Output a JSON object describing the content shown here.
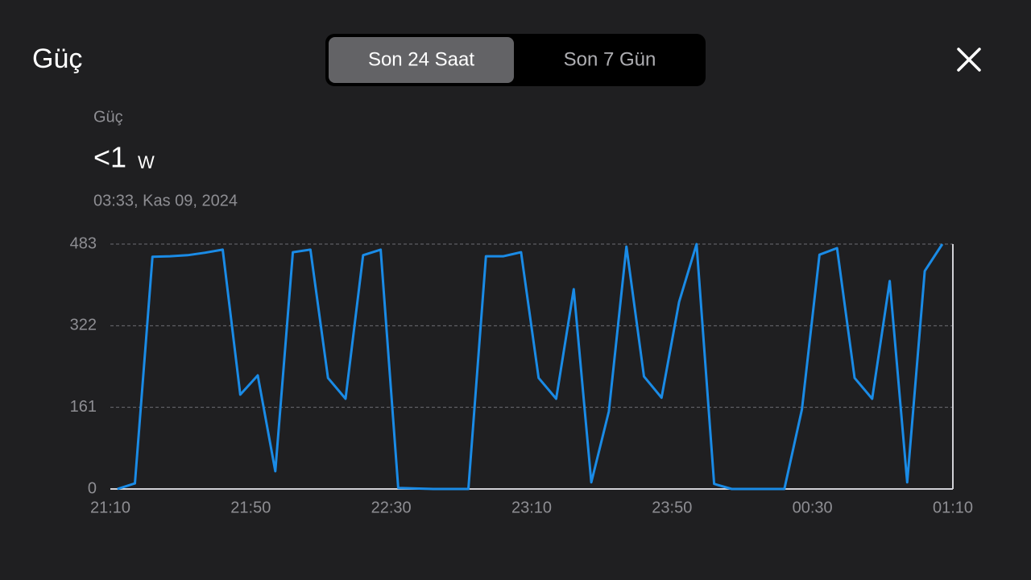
{
  "header": {
    "title": "Güç",
    "tabs": [
      "Son 24 Saat",
      "Son 7 Gün"
    ],
    "active_tab": 0
  },
  "summary": {
    "label": "Güç",
    "value": "<1",
    "unit": "W",
    "timestamp": "03:33, Kas 09, 2024"
  },
  "chart_data": {
    "type": "line",
    "x": [
      "21:12",
      "21:17",
      "21:22",
      "21:27",
      "21:32",
      "21:37",
      "21:42",
      "21:47",
      "21:52",
      "21:57",
      "22:02",
      "22:07",
      "22:12",
      "22:17",
      "22:22",
      "22:27",
      "22:32",
      "22:37",
      "22:42",
      "22:47",
      "22:52",
      "22:57",
      "23:02",
      "23:07",
      "23:12",
      "23:17",
      "23:22",
      "23:27",
      "23:32",
      "23:37",
      "23:42",
      "23:47",
      "23:52",
      "23:57",
      "00:02",
      "00:07",
      "00:12",
      "00:17",
      "00:22",
      "00:27",
      "00:32",
      "00:37",
      "00:42",
      "00:47",
      "00:52",
      "00:57",
      "01:02",
      "01:07"
    ],
    "series": [
      {
        "color": "#1a8be6",
        "values": [
          0,
          11,
          458,
          459,
          461,
          466,
          472,
          186,
          224,
          35,
          467,
          472,
          219,
          178,
          461,
          472,
          2,
          1,
          0,
          0,
          0,
          459,
          459,
          467,
          219,
          178,
          394,
          13,
          153,
          478,
          222,
          180,
          369,
          483,
          10,
          0,
          0,
          0,
          0,
          157,
          462,
          475,
          219,
          178,
          410,
          13,
          430,
          483
        ]
      }
    ],
    "xlim": [
      "21:10",
      "01:10"
    ],
    "xticks": [
      "21:10",
      "21:50",
      "22:30",
      "23:10",
      "23:50",
      "00:30",
      "01:10"
    ],
    "ylim": [
      0,
      483
    ],
    "yticks": [
      0,
      161,
      322,
      483
    ],
    "grid": true
  }
}
